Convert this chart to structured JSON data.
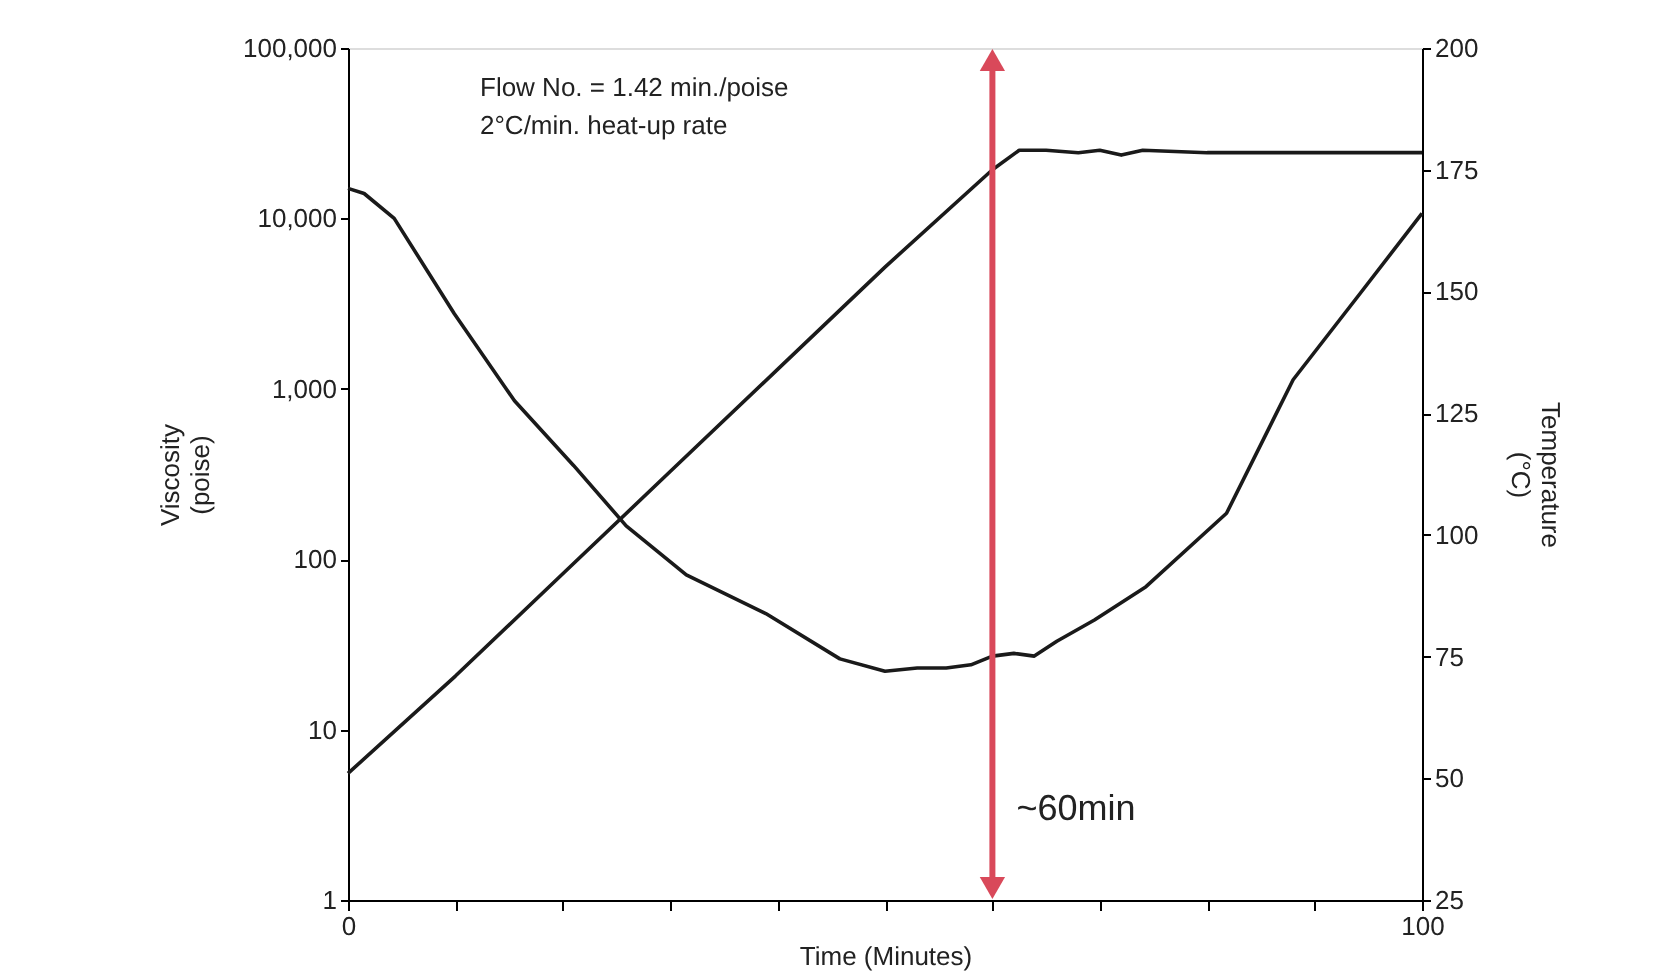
{
  "chart_data": {
    "type": "line",
    "xlabel": "Time (Minutes)",
    "ylabel": "Viscosity\n(poise)",
    "y2label": "Temperature\n(°C)",
    "xlim": [
      0,
      100
    ],
    "xticks": [
      0,
      {
        "value": 10,
        "label": null
      },
      {
        "value": 20,
        "label": null
      },
      {
        "value": 30,
        "label": null
      },
      {
        "value": 40,
        "label": null
      },
      {
        "value": 50,
        "label": null
      },
      {
        "value": 60,
        "label": null
      },
      {
        "value": 70,
        "label": null
      },
      {
        "value": 80,
        "label": null
      },
      {
        "value": 90,
        "label": null
      },
      100
    ],
    "ylim": [
      1,
      100000
    ],
    "yticks": [
      1,
      10,
      100,
      {
        "value": 1000,
        "label": "1,000"
      },
      {
        "value": 10000,
        "label": "10,000"
      },
      {
        "value": 100000,
        "label": "100,000"
      }
    ],
    "y2lim": [
      25,
      200
    ],
    "y2ticks": [
      25,
      50,
      75,
      100,
      125,
      150,
      175,
      200
    ],
    "log": "y",
    "grid": false,
    "line_style": "solid",
    "marker": "none",
    "series": [
      {
        "color": "#1a1a1a",
        "x": [
          0,
          1.5,
          4.3,
          9.9,
          15.5,
          21,
          25.9,
          31.5,
          38.9,
          45.8,
          50,
          53,
          55.7,
          58,
          60,
          62,
          63.9,
          66,
          69.5,
          74.3,
          81.8,
          88,
          94.2,
          100
        ],
        "values": [
          15000,
          14000,
          10000,
          2760,
          850,
          355,
          157,
          81,
          48,
          26,
          22,
          23,
          23,
          24,
          27,
          28,
          27,
          33,
          44,
          69,
          186,
          1130,
          3600,
          10700
        ]
      },
      {
        "color": "#1a1a1a",
        "axis": "y2",
        "x": [
          0,
          10,
          20,
          30,
          40,
          50,
          60,
          62.5,
          65,
          68,
          70,
          72,
          74,
          80,
          90,
          100
        ],
        "values": [
          51,
          71,
          92,
          113,
          134,
          155,
          175,
          179,
          179,
          178.5,
          179,
          178,
          179,
          178.5,
          178.5,
          178.5
        ]
      }
    ],
    "ref_lines": [
      {
        "axis": "x",
        "value": 60,
        "label": "~60min",
        "color": "#d9495a"
      }
    ],
    "annotations": [
      "Flow No. = 1.42 min./poise",
      "2°C/min. heat-up rate"
    ]
  }
}
